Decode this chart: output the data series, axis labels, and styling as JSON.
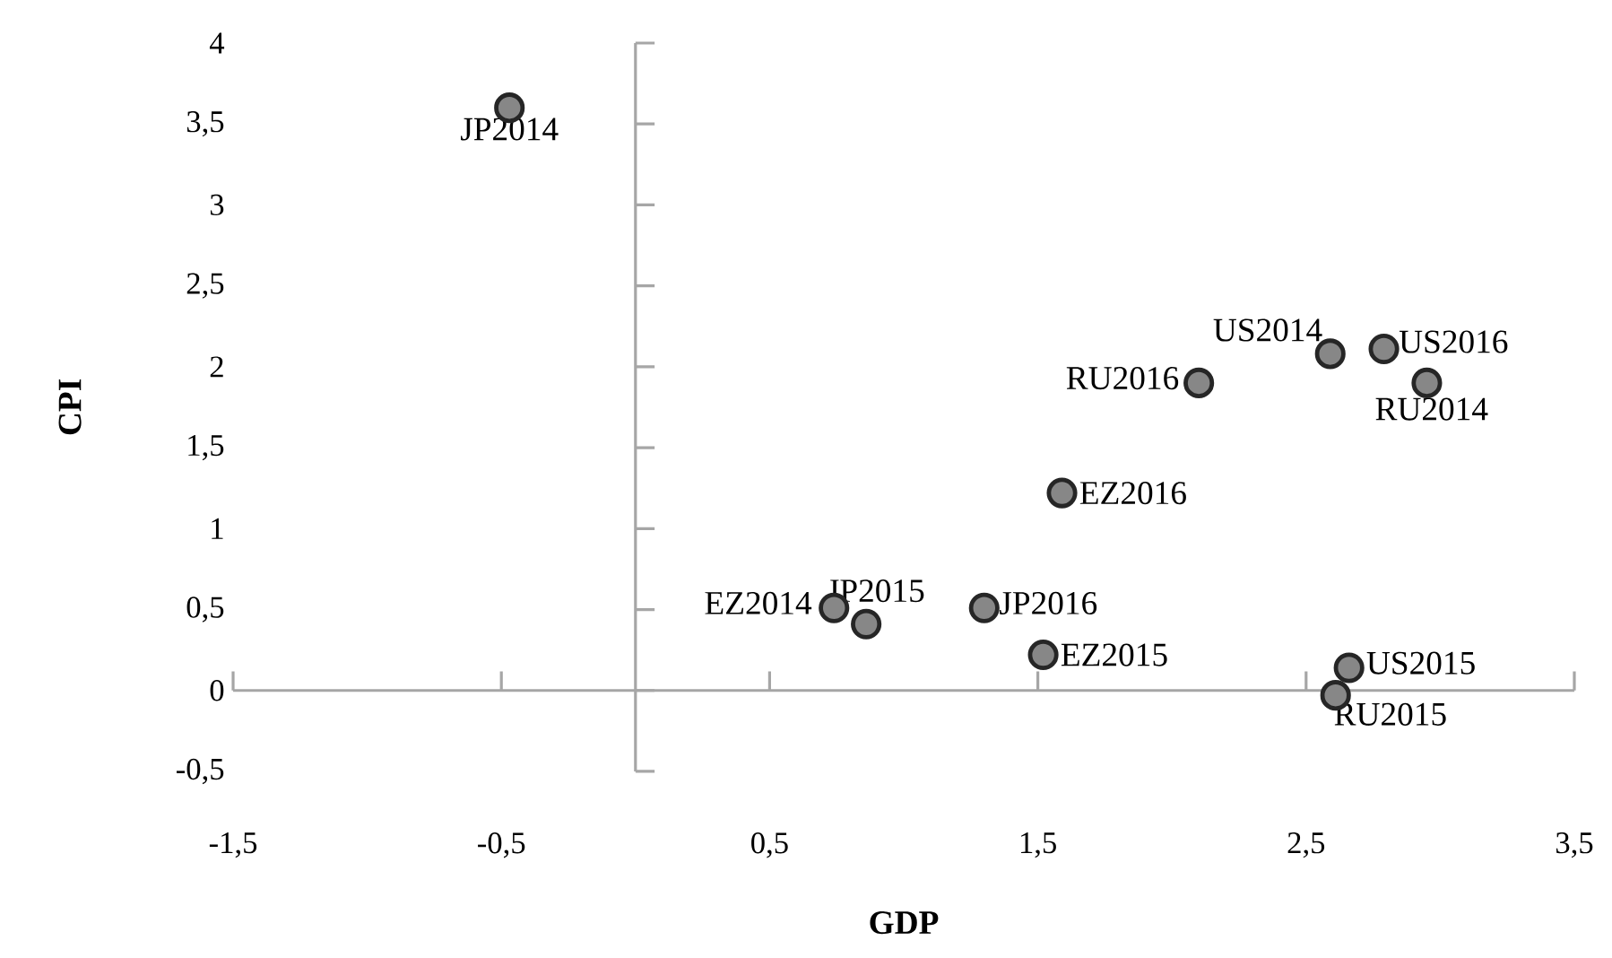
{
  "chart_data": {
    "type": "scatter",
    "xlabel": "GDP",
    "ylabel": "CPI",
    "x": [
      -0.47,
      2.59,
      2.79,
      2.95,
      2.1,
      1.59,
      0.74,
      0.86,
      1.3,
      1.52,
      2.66,
      2.61
    ],
    "series": [
      {
        "color": "#878787",
        "values": [
          3.6,
          2.08,
          2.11,
          1.9,
          1.9,
          1.22,
          0.51,
          0.41,
          0.51,
          0.22,
          0.14,
          -0.03
        ]
      }
    ],
    "xlim": [
      -1.5,
      3.5
    ],
    "ylim": [
      -0.5,
      4
    ],
    "xticks": [
      {
        "value": -1.5,
        "label": "-1,5"
      },
      {
        "value": -0.5,
        "label": "-0,5"
      },
      {
        "value": 0.5,
        "label": "0,5"
      },
      {
        "value": 1.5,
        "label": "1,5"
      },
      {
        "value": 2.5,
        "label": "2,5"
      },
      {
        "value": 3.5,
        "label": "3,5"
      }
    ],
    "yticks": [
      {
        "value": -0.5,
        "label": "-0,5"
      },
      0,
      {
        "value": 0.5,
        "label": "0,5"
      },
      1,
      {
        "value": 1.5,
        "label": "1,5"
      },
      2,
      {
        "value": 2.5,
        "label": "2,5"
      },
      3,
      {
        "value": 3.5,
        "label": "3,5"
      },
      4
    ],
    "annotations": [
      {
        "text": "JP2014",
        "x": -0.47,
        "y": 3.6
      },
      {
        "text": "US2014",
        "x": 2.59,
        "y": 2.08
      },
      {
        "text": "US2016",
        "x": 2.79,
        "y": 2.11
      },
      {
        "text": "RU2014",
        "x": 2.95,
        "y": 1.9
      },
      {
        "text": "RU2016",
        "x": 2.1,
        "y": 1.9
      },
      {
        "text": "EZ2016",
        "x": 1.59,
        "y": 1.22
      },
      {
        "text": "EZ2014",
        "x": 0.74,
        "y": 0.51
      },
      {
        "text": "JP2015",
        "x": 0.86,
        "y": 0.41
      },
      {
        "text": "JP2016",
        "x": 1.3,
        "y": 0.51
      },
      {
        "text": "EZ2015",
        "x": 1.52,
        "y": 0.22
      },
      {
        "text": "US2015",
        "x": 2.66,
        "y": 0.14
      },
      {
        "text": "RU2015",
        "x": 2.61,
        "y": -0.03
      }
    ]
  }
}
